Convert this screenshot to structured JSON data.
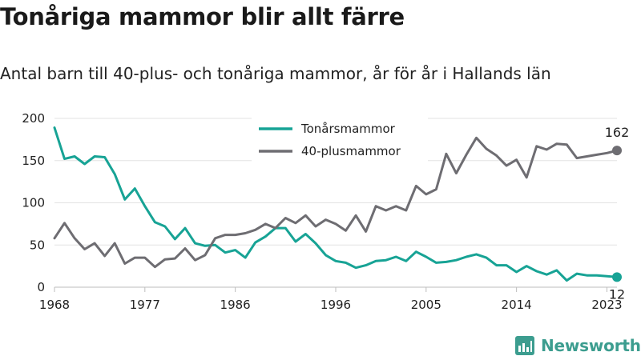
{
  "title": "Tonåriga mammor blir allt färre",
  "subtitle": "Antal barn till 40-plus- och tonåriga mammor, år för år i Hallands län",
  "brand": "Newsworthy",
  "chart_data": {
    "type": "line",
    "title": "Tonåriga mammor blir allt färre",
    "subtitle": "Antal barn till 40-plus- och tonåriga mammor, år för år i Hallands län",
    "xlabel": "",
    "ylabel": "",
    "xlim": [
      1968,
      2024
    ],
    "ylim": [
      0,
      200
    ],
    "x_ticks": [
      1968,
      1977,
      1986,
      1996,
      2005,
      2014,
      2023
    ],
    "y_ticks": [
      0,
      50,
      100,
      150,
      200
    ],
    "grid": "horizontal",
    "legend": "top-center",
    "x": [
      1968,
      1969,
      1970,
      1971,
      1972,
      1973,
      1974,
      1975,
      1976,
      1977,
      1978,
      1979,
      1980,
      1981,
      1982,
      1983,
      1984,
      1985,
      1986,
      1987,
      1988,
      1989,
      1990,
      1991,
      1992,
      1993,
      1994,
      1995,
      1996,
      1997,
      1998,
      1999,
      2000,
      2001,
      2002,
      2003,
      2004,
      2005,
      2006,
      2007,
      2008,
      2009,
      2010,
      2011,
      2012,
      2013,
      2014,
      2015,
      2016,
      2017,
      2018,
      2019,
      2020,
      2021,
      2022,
      2023,
      2024
    ],
    "series": [
      {
        "name": "Tonårsmammor",
        "color": "#17a395",
        "end_label": "12",
        "values": [
          189,
          152,
          155,
          146,
          155,
          154,
          134,
          104,
          117,
          96,
          77,
          72,
          57,
          70,
          52,
          49,
          50,
          41,
          44,
          35,
          53,
          60,
          70,
          70,
          54,
          63,
          52,
          38,
          31,
          29,
          23,
          26,
          31,
          32,
          36,
          31,
          42,
          36,
          29,
          30,
          32,
          36,
          39,
          35,
          26,
          26,
          18,
          25,
          19,
          15,
          20,
          8,
          16,
          14,
          14,
          13,
          12
        ]
      },
      {
        "name": "40-plusmammor",
        "color": "#6e6d72",
        "end_label": "162",
        "values": [
          58,
          76,
          58,
          45,
          52,
          37,
          52,
          28,
          35,
          35,
          24,
          33,
          34,
          46,
          32,
          38,
          58,
          62,
          62,
          64,
          68,
          75,
          70,
          82,
          76,
          85,
          72,
          80,
          75,
          67,
          85,
          66,
          96,
          91,
          96,
          91,
          120,
          110,
          116,
          158,
          135,
          157,
          177,
          164,
          156,
          144,
          151,
          130,
          167,
          163,
          170,
          169,
          153,
          155,
          157,
          159,
          162
        ]
      }
    ]
  }
}
